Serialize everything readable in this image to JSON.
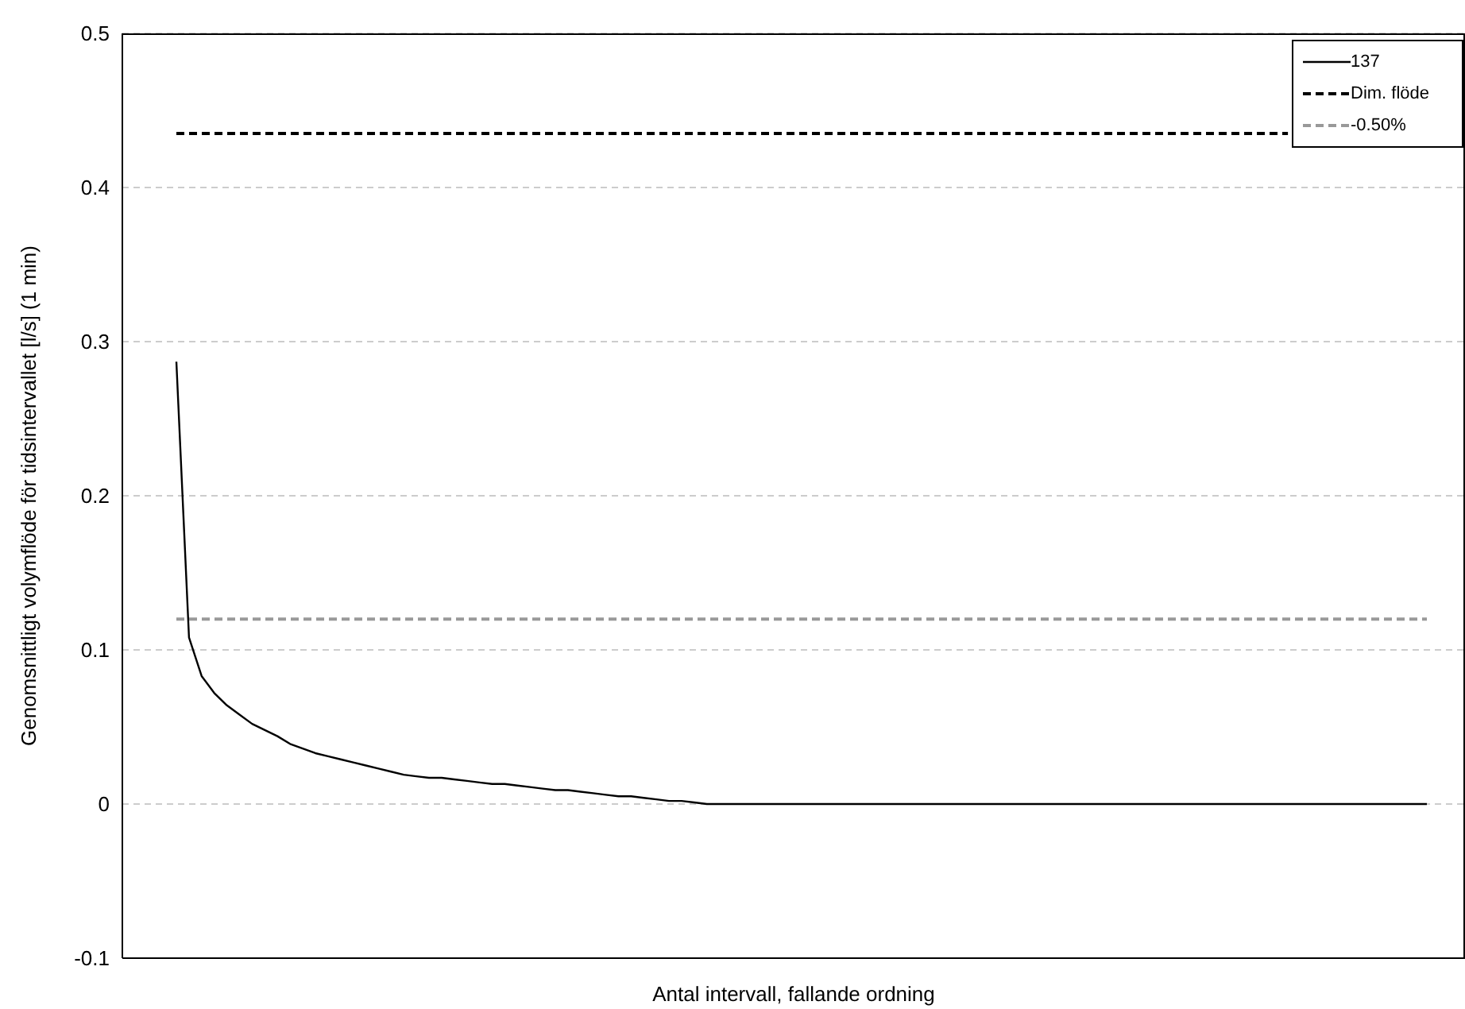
{
  "chart_data": {
    "type": "line",
    "xlabel": "Antal intervall, fallande ordning",
    "ylabel": "Genomsnittligt volymflöde för tidsintervallet [l/s] (1 min)",
    "categories": [
      null,
      null,
      null,
      null,
      null,
      null,
      null,
      null,
      null,
      null,
      null,
      null,
      null,
      null,
      null,
      null,
      null,
      null,
      null,
      null,
      null,
      null,
      null,
      null,
      null,
      null,
      null,
      null,
      null,
      null,
      null,
      null,
      null,
      null,
      null,
      null,
      null,
      null,
      null,
      null,
      null,
      null,
      null,
      null,
      null,
      null,
      null,
      null,
      null,
      null,
      null,
      null,
      null,
      null,
      null,
      null,
      null,
      null,
      null,
      null,
      null,
      null,
      null,
      null,
      null,
      null,
      null,
      null,
      null,
      null,
      null,
      null,
      null,
      null,
      null,
      null,
      null,
      null,
      null,
      null,
      null,
      null,
      null,
      null,
      null,
      null,
      null,
      null,
      null,
      null,
      null,
      null,
      null,
      null,
      null,
      null,
      null,
      null,
      null,
      null
    ],
    "series": [
      {
        "name": "137",
        "color": "#000000",
        "line_style": "solid",
        "values": [
          0.287,
          0.108,
          0.083,
          0.072,
          0.064,
          0.058,
          0.052,
          0.048,
          0.044,
          0.039,
          0.036,
          0.033,
          0.031,
          0.029,
          0.027,
          0.025,
          0.023,
          0.021,
          0.019,
          0.018,
          0.017,
          0.017,
          0.016,
          0.015,
          0.014,
          0.013,
          0.013,
          0.012,
          0.011,
          0.01,
          0.009,
          0.009,
          0.008,
          0.007,
          0.006,
          0.005,
          0.005,
          0.004,
          0.003,
          0.002,
          0.002,
          0.001,
          0,
          0,
          0,
          0,
          0,
          0,
          0,
          0,
          0,
          0,
          0,
          0,
          0,
          0,
          0,
          0,
          0,
          0,
          0,
          0,
          0,
          0,
          0,
          0,
          0,
          0,
          0,
          0,
          0,
          0,
          0,
          0,
          0,
          0,
          0,
          0,
          0,
          0,
          0,
          0,
          0,
          0,
          0,
          0,
          0,
          0,
          0,
          0,
          0,
          0,
          0,
          0,
          0,
          0,
          0,
          0,
          0,
          0
        ]
      },
      {
        "name": "Dim. flöde",
        "color": "#000000",
        "line_style": "dashed",
        "values": [
          0.435,
          0.435,
          0.435,
          0.435,
          0.435,
          0.435,
          0.435,
          0.435,
          0.435,
          0.435,
          0.435,
          0.435,
          0.435,
          0.435,
          0.435,
          0.435,
          0.435,
          0.435,
          0.435,
          0.435,
          0.435,
          0.435,
          0.435,
          0.435,
          0.435,
          0.435,
          0.435,
          0.435,
          0.435,
          0.435,
          0.435,
          0.435,
          0.435,
          0.435,
          0.435,
          0.435,
          0.435,
          0.435,
          0.435,
          0.435,
          0.435,
          0.435,
          0.435,
          0.435,
          0.435,
          0.435,
          0.435,
          0.435,
          0.435,
          0.435,
          0.435,
          0.435,
          0.435,
          0.435,
          0.435,
          0.435,
          0.435,
          0.435,
          0.435,
          0.435,
          0.435,
          0.435,
          0.435,
          0.435,
          0.435,
          0.435,
          0.435,
          0.435,
          0.435,
          0.435,
          0.435,
          0.435,
          0.435,
          0.435,
          0.435,
          0.435,
          0.435,
          0.435,
          0.435,
          0.435,
          0.435,
          0.435,
          0.435,
          0.435,
          0.435,
          0.435,
          0.435,
          0.435,
          0.435,
          null,
          null,
          null,
          null,
          null,
          null,
          null,
          null,
          null,
          null,
          null
        ]
      },
      {
        "name": "-0.50%",
        "color": "#999999",
        "line_style": "dashed",
        "values": [
          0.12,
          0.12,
          0.12,
          0.12,
          0.12,
          0.12,
          0.12,
          0.12,
          0.12,
          0.12,
          0.12,
          0.12,
          0.12,
          0.12,
          0.12,
          0.12,
          0.12,
          0.12,
          0.12,
          0.12,
          0.12,
          0.12,
          0.12,
          0.12,
          0.12,
          0.12,
          0.12,
          0.12,
          0.12,
          0.12,
          0.12,
          0.12,
          0.12,
          0.12,
          0.12,
          0.12,
          0.12,
          0.12,
          0.12,
          0.12,
          0.12,
          0.12,
          0.12,
          0.12,
          0.12,
          0.12,
          0.12,
          0.12,
          0.12,
          0.12,
          0.12,
          0.12,
          0.12,
          0.12,
          0.12,
          0.12,
          0.12,
          0.12,
          0.12,
          0.12,
          0.12,
          0.12,
          0.12,
          0.12,
          0.12,
          0.12,
          0.12,
          0.12,
          0.12,
          0.12,
          0.12,
          0.12,
          0.12,
          0.12,
          0.12,
          0.12,
          0.12,
          0.12,
          0.12,
          0.12,
          0.12,
          0.12,
          0.12,
          0.12,
          0.12,
          0.12,
          0.12,
          0.12,
          0.12,
          0.12,
          0.12,
          0.12,
          0.12,
          0.12,
          0.12,
          0.12,
          0.12,
          0.12,
          0.12,
          0.12
        ]
      }
    ],
    "ylim": [
      -0.1,
      0.5
    ],
    "yticks": [
      -0.1,
      0,
      0.1,
      0.2,
      0.3,
      0.4,
      0.5
    ],
    "grid": "y",
    "legend": "top right",
    "marker": "none",
    "tick_labels": "y"
  }
}
